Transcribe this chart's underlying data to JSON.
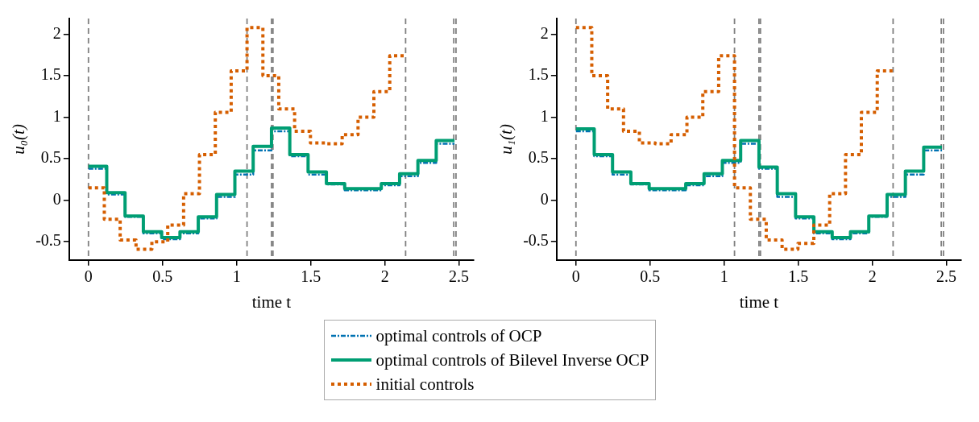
{
  "chart_data": [
    {
      "type": "step",
      "xlabel": "time t",
      "ylabel": "u₀(t)",
      "xlim": [
        -0.13,
        2.6
      ],
      "ylim": [
        -0.72,
        2.19
      ],
      "xticks": [
        0,
        0.5,
        1,
        1.5,
        2,
        2.5
      ],
      "yticks": [
        -0.5,
        0,
        0.5,
        1,
        1.5,
        2
      ],
      "grid": false,
      "legend": "bottom",
      "ref_lines": [
        {
          "axis": "x",
          "value": 0,
          "color": "#808080",
          "line_style": "dashed"
        },
        {
          "axis": "x",
          "value": 1.07,
          "color": "#808080",
          "line_style": "dashed"
        },
        {
          "axis": "x",
          "value": 1.235,
          "color": "#808080",
          "line_style": "dashed"
        },
        {
          "axis": "x",
          "value": 1.245,
          "color": "#808080",
          "line_style": "dashed"
        },
        {
          "axis": "x",
          "value": 2.14,
          "color": "#808080",
          "line_style": "dashed"
        },
        {
          "axis": "x",
          "value": 2.465,
          "color": "#808080",
          "line_style": "dashed"
        },
        {
          "axis": "x",
          "value": 2.48,
          "color": "#808080",
          "line_style": "dashed"
        }
      ],
      "series": [
        {
          "name": "optimal controls of OCP",
          "color": "#0072b2",
          "line_style": "dashed",
          "x": [
            0,
            0.1235,
            0.247,
            0.3705,
            0.494,
            0.6175,
            0.741,
            0.8645,
            0.988,
            1.1115,
            1.235,
            1.3585,
            1.482,
            1.6055,
            1.729,
            1.8525,
            1.976,
            2.0995,
            2.223,
            2.3465,
            2.47
          ],
          "values": [
            0.38,
            0.07,
            -0.2,
            -0.4,
            -0.47,
            -0.4,
            -0.22,
            0.04,
            0.31,
            0.6,
            0.83,
            0.53,
            0.31,
            0.19,
            0.12,
            0.12,
            0.18,
            0.29,
            0.45,
            0.68,
            0.68
          ]
        },
        {
          "name": "optimal controls of Bilevel Inverse OCP",
          "color": "#009e73",
          "line_style": "solid",
          "x": [
            0,
            0.1235,
            0.247,
            0.3705,
            0.494,
            0.6175,
            0.741,
            0.8645,
            0.988,
            1.1115,
            1.235,
            1.3585,
            1.482,
            1.6055,
            1.729,
            1.8525,
            1.976,
            2.0995,
            2.223,
            2.3465,
            2.47
          ],
          "values": [
            0.41,
            0.09,
            -0.19,
            -0.38,
            -0.45,
            -0.38,
            -0.2,
            0.07,
            0.35,
            0.65,
            0.87,
            0.55,
            0.34,
            0.2,
            0.14,
            0.14,
            0.2,
            0.32,
            0.48,
            0.72,
            0.72
          ]
        },
        {
          "name": "initial controls",
          "color": "#d55e00",
          "line_style": "dotted",
          "x": [
            0,
            0.107,
            0.214,
            0.321,
            0.428,
            0.535,
            0.642,
            0.749,
            0.856,
            0.963,
            1.07,
            1.177,
            1.284,
            1.391,
            1.498,
            1.605,
            1.712,
            1.819,
            1.926,
            2.033,
            2.14
          ],
          "values": [
            0.15,
            -0.23,
            -0.48,
            -0.59,
            -0.5,
            -0.3,
            0.08,
            0.55,
            1.06,
            1.56,
            2.08,
            1.5,
            1.1,
            0.83,
            0.69,
            0.68,
            0.79,
            1.0,
            1.31,
            1.74,
            1.74
          ]
        }
      ]
    },
    {
      "type": "step",
      "xlabel": "time t",
      "ylabel": "u₁(t)",
      "xlim": [
        -0.13,
        2.6
      ],
      "ylim": [
        -0.72,
        2.19
      ],
      "xticks": [
        0,
        0.5,
        1,
        1.5,
        2,
        2.5
      ],
      "yticks": [
        -0.5,
        0,
        0.5,
        1,
        1.5,
        2
      ],
      "grid": false,
      "ref_lines": [
        {
          "axis": "x",
          "value": 0,
          "color": "#808080",
          "line_style": "dashed"
        },
        {
          "axis": "x",
          "value": 1.07,
          "color": "#808080",
          "line_style": "dashed"
        },
        {
          "axis": "x",
          "value": 1.235,
          "color": "#808080",
          "line_style": "dashed"
        },
        {
          "axis": "x",
          "value": 1.245,
          "color": "#808080",
          "line_style": "dashed"
        },
        {
          "axis": "x",
          "value": 2.14,
          "color": "#808080",
          "line_style": "dashed"
        },
        {
          "axis": "x",
          "value": 2.465,
          "color": "#808080",
          "line_style": "dashed"
        },
        {
          "axis": "x",
          "value": 2.48,
          "color": "#808080",
          "line_style": "dashed"
        }
      ],
      "series": [
        {
          "color": "#0072b2",
          "line_style": "dashed",
          "x": [
            0,
            0.1235,
            0.247,
            0.3705,
            0.494,
            0.6175,
            0.741,
            0.8645,
            0.988,
            1.1115,
            1.235,
            1.3585,
            1.482,
            1.6055,
            1.729,
            1.8525,
            1.976,
            2.0995,
            2.223,
            2.3465,
            2.47
          ],
          "values": [
            0.83,
            0.53,
            0.31,
            0.19,
            0.12,
            0.12,
            0.18,
            0.29,
            0.45,
            0.68,
            0.38,
            0.04,
            -0.22,
            -0.4,
            -0.47,
            -0.4,
            -0.2,
            0.04,
            0.31,
            0.6,
            0.6
          ]
        },
        {
          "color": "#009e73",
          "line_style": "solid",
          "x": [
            0,
            0.1235,
            0.247,
            0.3705,
            0.494,
            0.6175,
            0.741,
            0.8645,
            0.988,
            1.1115,
            1.235,
            1.3585,
            1.482,
            1.6055,
            1.729,
            1.8525,
            1.976,
            2.0995,
            2.223,
            2.3465,
            2.47
          ],
          "values": [
            0.86,
            0.55,
            0.34,
            0.2,
            0.14,
            0.14,
            0.2,
            0.32,
            0.48,
            0.72,
            0.4,
            0.08,
            -0.2,
            -0.38,
            -0.45,
            -0.38,
            -0.19,
            0.07,
            0.35,
            0.64,
            0.64
          ]
        },
        {
          "color": "#d55e00",
          "line_style": "dotted",
          "x": [
            0,
            0.107,
            0.214,
            0.321,
            0.428,
            0.535,
            0.642,
            0.749,
            0.856,
            0.963,
            1.07,
            1.177,
            1.284,
            1.391,
            1.498,
            1.605,
            1.712,
            1.819,
            1.926,
            2.033,
            2.14
          ],
          "values": [
            2.08,
            1.5,
            1.1,
            0.83,
            0.69,
            0.68,
            0.79,
            1.0,
            1.31,
            1.74,
            0.15,
            -0.23,
            -0.48,
            -0.59,
            -0.52,
            -0.3,
            0.08,
            0.55,
            1.06,
            1.56,
            1.56
          ]
        }
      ]
    }
  ]
}
